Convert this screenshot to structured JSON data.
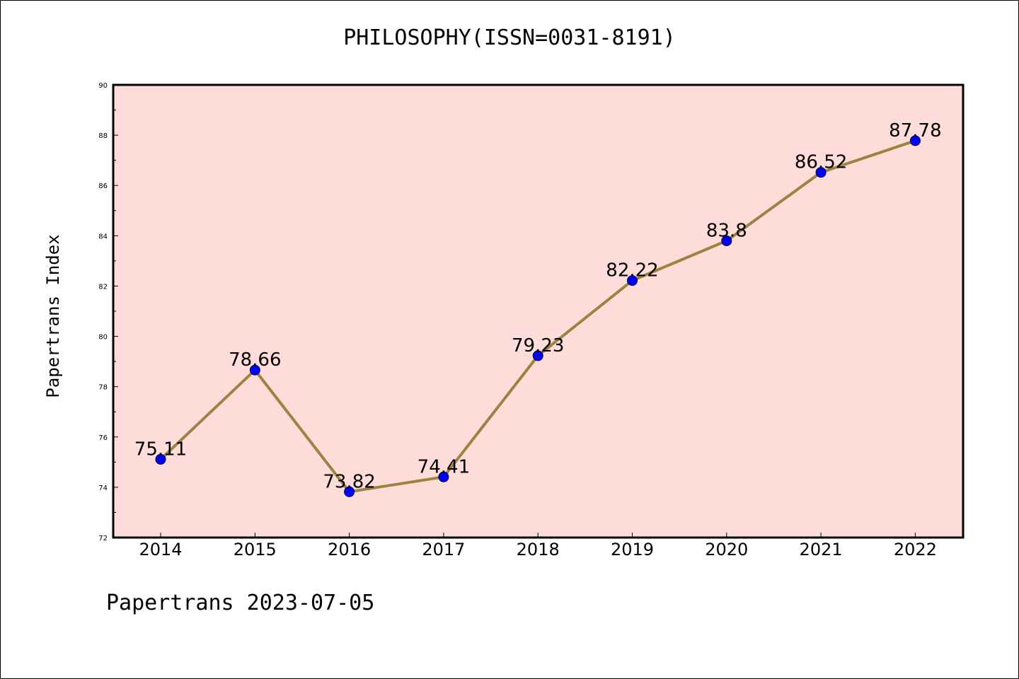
{
  "title": "PHILOSOPHY(ISSN=0031-8191)",
  "ylabel": "Papertrans Index",
  "footer": "Papertrans 2023-07-05",
  "colors": {
    "plot_bg": "#fddcd9",
    "line": "#9c8440",
    "marker": "#0000ff"
  },
  "chart_data": {
    "type": "line",
    "title": "PHILOSOPHY(ISSN=0031-8191)",
    "xlabel": "",
    "ylabel": "Papertrans Index",
    "categories": [
      "2014",
      "2015",
      "2016",
      "2017",
      "2018",
      "2019",
      "2020",
      "2021",
      "2022"
    ],
    "series": [
      {
        "values": [
          75.11,
          78.66,
          73.82,
          74.41,
          79.23,
          82.22,
          83.8,
          86.52,
          87.78
        ],
        "labels": [
          "75.11",
          "78.66",
          "73.82",
          "74.41",
          "79.23",
          "82.22",
          "83.8",
          "86.52",
          "87.78"
        ]
      }
    ],
    "ylim": [
      72,
      90
    ],
    "yticks": [
      "72",
      "74",
      "76",
      "78",
      "80",
      "82",
      "84",
      "86",
      "88",
      "90"
    ],
    "grid": false,
    "legend": "none"
  }
}
